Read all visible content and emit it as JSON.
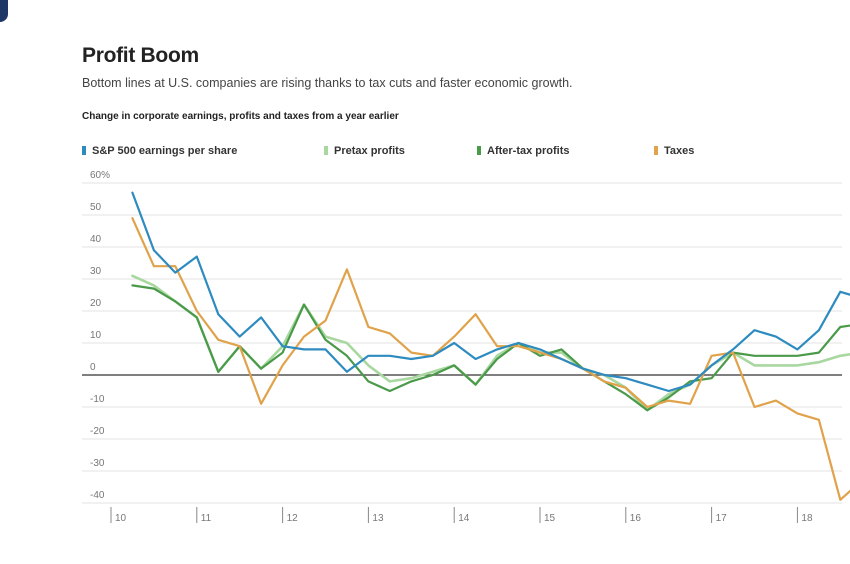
{
  "header": {
    "title": "Profit Boom",
    "subtitle": "Bottom lines at U.S. companies are rising thanks to tax cuts and faster economic growth.",
    "chart_label": "Change in corporate earnings, profits and taxes from a year earlier"
  },
  "chart_data": {
    "type": "line",
    "title": "Profit Boom",
    "subtitle": "Bottom lines at U.S. companies are rising thanks to tax cuts and faster economic growth.",
    "ylabel": "Change in corporate earnings, profits and taxes from a year earlier",
    "xlabel": "",
    "ylim": [
      -40,
      60
    ],
    "y_ticks": [
      60,
      50,
      40,
      30,
      20,
      10,
      0,
      -10,
      -20,
      -30,
      -40
    ],
    "y_tick_labels": [
      "60%",
      "50",
      "40",
      "30",
      "20",
      "10",
      "0",
      "-10",
      "-20",
      "-30",
      "-40"
    ],
    "x_tick_labels": [
      "'10",
      "'11",
      "'12",
      "'13",
      "'14",
      "'15",
      "'16",
      "'17",
      "'18"
    ],
    "x_tick_years": [
      2010,
      2011,
      2012,
      2013,
      2014,
      2015,
      2016,
      2017,
      2018
    ],
    "x_start_year": 2010,
    "x_start_quarter": 1,
    "points_per_year": 4,
    "grid": true,
    "legend_position": "top",
    "series": [
      {
        "name": "S&P 500 earnings per share",
        "color": "#2e8bc0",
        "values": [
          57,
          39,
          32,
          37,
          19,
          12,
          18,
          9,
          8,
          8,
          1,
          6,
          6,
          5,
          6,
          10,
          5,
          8,
          10,
          8,
          5,
          2,
          0,
          -1,
          -3,
          -5,
          -3,
          3,
          8,
          14,
          12,
          8,
          14,
          26,
          24
        ]
      },
      {
        "name": "Pretax profits",
        "color": "#a8d8a0",
        "values": [
          31,
          28,
          23,
          18,
          1,
          9,
          2,
          9,
          22,
          12,
          10,
          3,
          -2,
          -1,
          1,
          3,
          -3,
          6,
          10,
          7,
          7,
          2,
          0,
          -4,
          -11,
          -6,
          -3,
          3,
          7,
          3,
          3,
          3,
          4,
          6,
          7
        ]
      },
      {
        "name": "After-tax profits",
        "color": "#4a9a4a",
        "values": [
          28,
          27,
          23,
          18,
          1,
          9,
          2,
          7,
          22,
          11,
          6,
          -2,
          -5,
          -2,
          0,
          3,
          -3,
          5,
          10,
          6,
          8,
          2,
          -2,
          -6,
          -11,
          -7,
          -2,
          -1,
          7,
          6,
          6,
          6,
          7,
          15,
          16
        ]
      },
      {
        "name": "Taxes",
        "color": "#e0a24a",
        "values": [
          49,
          34,
          34,
          20,
          11,
          9,
          -9,
          3,
          12,
          17,
          33,
          15,
          13,
          7,
          6,
          12,
          19,
          9,
          9,
          7,
          5,
          2,
          -2,
          -4,
          -10,
          -8,
          -9,
          6,
          7,
          -10,
          -8,
          -12,
          -14,
          -39,
          -33
        ]
      }
    ]
  },
  "legend": {
    "items": [
      {
        "label": "S&P 500 earnings per share",
        "color": "#2e8bc0"
      },
      {
        "label": "Pretax profits",
        "color": "#a8d8a0"
      },
      {
        "label": "After-tax profits",
        "color": "#4a9a4a"
      },
      {
        "label": "Taxes",
        "color": "#e0a24a"
      }
    ]
  }
}
